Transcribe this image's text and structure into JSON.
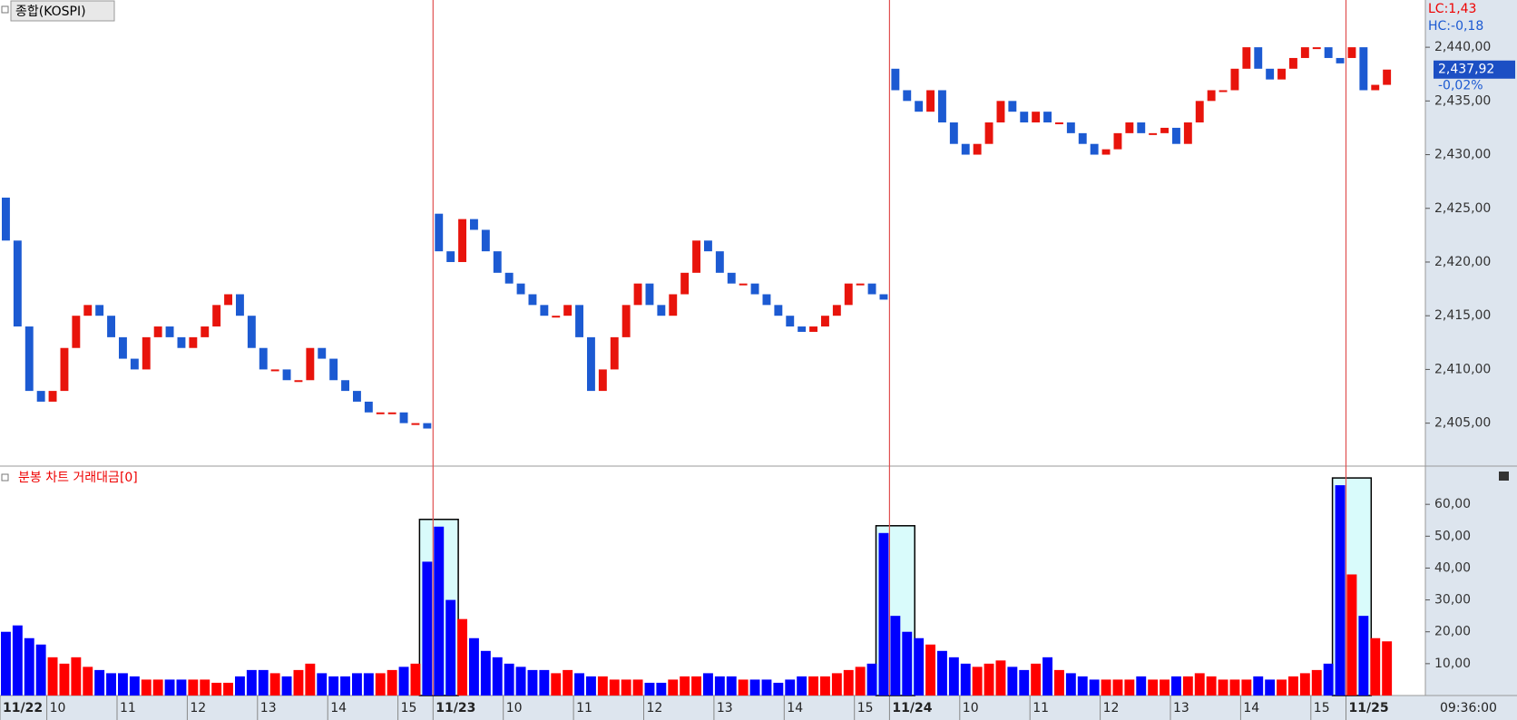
{
  "chart_data": [
    {
      "type": "candlestick",
      "title": "종합(KOSPI)",
      "open": [
        2426,
        2422,
        2414,
        2408,
        2407,
        2408,
        2412,
        2415,
        2416,
        2415,
        2413,
        2411,
        2410,
        2413,
        2414,
        2413,
        2412,
        2413,
        2414,
        2416,
        2417,
        2415,
        2412,
        2410,
        2410,
        2409,
        2409,
        2412,
        2411,
        2409,
        2408,
        2407,
        2406,
        2406,
        2406,
        2405,
        2405,
        2424.5,
        2421,
        2420,
        2424,
        2423,
        2421,
        2419,
        2418,
        2417,
        2416,
        2415,
        2415,
        2416,
        2413,
        2408,
        2410,
        2413,
        2416,
        2418,
        2416,
        2415,
        2417,
        2419,
        2422,
        2421,
        2419,
        2418,
        2418,
        2417,
        2416,
        2415,
        2414,
        2413.5,
        2414,
        2415,
        2416,
        2418,
        2418,
        2417,
        2438,
        2436,
        2435,
        2434,
        2436,
        2433,
        2431,
        2430,
        2431,
        2433,
        2435,
        2434,
        2433,
        2434,
        2433,
        2433,
        2432,
        2431,
        2430,
        2430.5,
        2432,
        2433,
        2432,
        2432,
        2432.5,
        2431,
        2433,
        2435,
        2436,
        2436,
        2438,
        2440,
        2438,
        2437,
        2438,
        2439,
        2440,
        2440,
        2439,
        2439,
        2440,
        2436,
        2436.5
      ],
      "close": [
        2422,
        2414,
        2408,
        2407,
        2408,
        2412,
        2415,
        2416,
        2415,
        2413,
        2411,
        2410,
        2413,
        2414,
        2413,
        2412,
        2413,
        2414,
        2416,
        2417,
        2415,
        2412,
        2410,
        2410,
        2409,
        2409,
        2412,
        2411,
        2409,
        2408,
        2407,
        2406,
        2406,
        2406,
        2405,
        2405,
        2404.5,
        2421,
        2420,
        2424,
        2423,
        2421,
        2419,
        2418,
        2417,
        2416,
        2415,
        2415,
        2416,
        2413,
        2408,
        2410,
        2413,
        2416,
        2418,
        2416,
        2415,
        2417,
        2419,
        2422,
        2421,
        2419,
        2418,
        2418,
        2417,
        2416,
        2415,
        2414,
        2413.5,
        2414,
        2415,
        2416,
        2418,
        2418,
        2417,
        2416.5,
        2436,
        2435,
        2434,
        2436,
        2433,
        2431,
        2430,
        2431,
        2433,
        2435,
        2434,
        2433,
        2434,
        2433,
        2433,
        2432,
        2431,
        2430,
        2430.5,
        2432,
        2433,
        2432,
        2432,
        2432.5,
        2431,
        2433,
        2435,
        2436,
        2436,
        2438,
        2440,
        2438,
        2437,
        2438,
        2439,
        2440,
        2440,
        2439,
        2438.5,
        2440,
        2436,
        2436.5,
        2437.92
      ],
      "ylim": [
        2401,
        2444.4
      ],
      "yticks": [
        {
          "value": 2405,
          "label": "2,405,00"
        },
        {
          "value": 2410,
          "label": "2,410,00"
        },
        {
          "value": 2415,
          "label": "2,415,00"
        },
        {
          "value": 2420,
          "label": "2,420,00"
        },
        {
          "value": 2425,
          "label": "2,425,00"
        },
        {
          "value": 2430,
          "label": "2,430,00"
        },
        {
          "value": 2435,
          "label": "2,435,00"
        },
        {
          "value": 2440,
          "label": "2,440,00"
        }
      ],
      "lc_label": "LC:1,43",
      "hc_label": "HC:-0,18",
      "last_label": "2,437,92",
      "change_label": "-0,02%",
      "up_color": "#e8140c",
      "down_color": "#1c5ad2"
    },
    {
      "type": "bar",
      "title": "분봉 차트 거래대금[0]",
      "values": [
        20,
        22,
        18,
        16,
        12,
        10,
        12,
        9,
        8,
        7,
        7,
        6,
        5,
        5,
        5,
        5,
        5,
        5,
        4,
        4,
        6,
        8,
        8,
        7,
        6,
        8,
        10,
        7,
        6,
        6,
        7,
        7,
        7,
        8,
        9,
        10,
        42,
        53,
        30,
        24,
        18,
        14,
        12,
        10,
        9,
        8,
        8,
        7,
        8,
        7,
        6,
        6,
        5,
        5,
        5,
        4,
        4,
        5,
        6,
        6,
        7,
        6,
        6,
        5,
        5,
        5,
        4,
        5,
        6,
        6,
        6,
        7,
        8,
        9,
        10,
        51,
        25,
        20,
        18,
        16,
        14,
        12,
        10,
        9,
        10,
        11,
        9,
        8,
        10,
        12,
        8,
        7,
        6,
        5,
        5,
        5,
        5,
        6,
        5,
        5,
        6,
        6,
        7,
        6,
        5,
        5,
        5,
        6,
        5,
        5,
        6,
        7,
        8,
        10,
        66,
        38,
        25,
        18,
        17
      ],
      "ylim": [
        0,
        72
      ],
      "yticks": [
        {
          "value": 10,
          "label": "10,00"
        },
        {
          "value": 20,
          "label": "20,00"
        },
        {
          "value": 30,
          "label": "30,00"
        },
        {
          "value": 40,
          "label": "40,00"
        },
        {
          "value": 50,
          "label": "50,00"
        },
        {
          "value": 60,
          "label": "60,00"
        }
      ],
      "up_color": "#ff0000",
      "down_color": "#0000ff"
    }
  ],
  "xticks": [
    {
      "value": 0,
      "label": "11/22"
    },
    {
      "value": 4,
      "label": "10"
    },
    {
      "value": 10,
      "label": "11"
    },
    {
      "value": 16,
      "label": "12"
    },
    {
      "value": 22,
      "label": "13"
    },
    {
      "value": 28,
      "label": "14"
    },
    {
      "value": 34,
      "label": "15"
    },
    {
      "value": 37,
      "label": "11/23"
    },
    {
      "value": 43,
      "label": "10"
    },
    {
      "value": 49,
      "label": "11"
    },
    {
      "value": 55,
      "label": "12"
    },
    {
      "value": 61,
      "label": "13"
    },
    {
      "value": 67,
      "label": "14"
    },
    {
      "value": 73,
      "label": "15"
    },
    {
      "value": 76,
      "label": "11/24"
    },
    {
      "value": 82,
      "label": "10"
    },
    {
      "value": 88,
      "label": "11"
    },
    {
      "value": 94,
      "label": "12"
    },
    {
      "value": 100,
      "label": "13"
    },
    {
      "value": 106,
      "label": "14"
    },
    {
      "value": 112,
      "label": "15"
    },
    {
      "value": 115,
      "label": "11/25"
    }
  ],
  "time_label": "09:36:00"
}
